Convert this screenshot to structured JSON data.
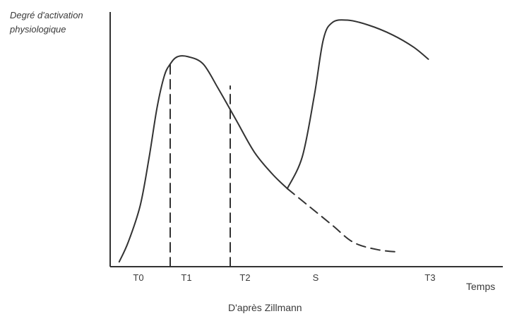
{
  "chart_data": {
    "type": "line",
    "title": "",
    "ylabel_lines": [
      "Degré d'activation",
      "physiologique"
    ],
    "xlabel": "Temps",
    "caption": "D'après Zillmann",
    "ticks": [
      "T0",
      "T1",
      "T2",
      "S",
      "T3"
    ],
    "grid": false,
    "line_color": "#333333",
    "series": [
      {
        "style": "solid",
        "points": [
          [
            0.15,
            0.02
          ],
          [
            0.3,
            0.1
          ],
          [
            0.5,
            0.25
          ],
          [
            0.65,
            0.45
          ],
          [
            0.78,
            0.65
          ],
          [
            0.9,
            0.78
          ],
          [
            1.0,
            0.83
          ],
          [
            1.12,
            0.86
          ],
          [
            1.3,
            0.86
          ],
          [
            1.55,
            0.83
          ],
          [
            1.8,
            0.73
          ],
          [
            2.1,
            0.6
          ],
          [
            2.4,
            0.47
          ],
          [
            2.7,
            0.38
          ],
          [
            2.95,
            0.32
          ]
        ]
      },
      {
        "style": "solid",
        "points": [
          [
            2.95,
            0.32
          ],
          [
            3.2,
            0.45
          ],
          [
            3.4,
            0.7
          ],
          [
            3.55,
            0.93
          ],
          [
            3.7,
            1.0
          ],
          [
            3.95,
            1.01
          ],
          [
            4.3,
            0.99
          ],
          [
            4.7,
            0.95
          ],
          [
            5.05,
            0.9
          ],
          [
            5.3,
            0.85
          ]
        ]
      },
      {
        "style": "dashed",
        "points": [
          [
            2.95,
            0.32
          ],
          [
            3.3,
            0.25
          ],
          [
            3.7,
            0.17
          ],
          [
            4.05,
            0.1
          ],
          [
            4.45,
            0.07
          ],
          [
            4.8,
            0.06
          ]
        ]
      },
      {
        "style": "dashed",
        "points": [
          [
            1.0,
            0.0
          ],
          [
            1.0,
            0.83
          ]
        ]
      },
      {
        "style": "dashed",
        "points": [
          [
            2.0,
            0.0
          ],
          [
            2.0,
            0.74
          ]
        ]
      }
    ]
  }
}
